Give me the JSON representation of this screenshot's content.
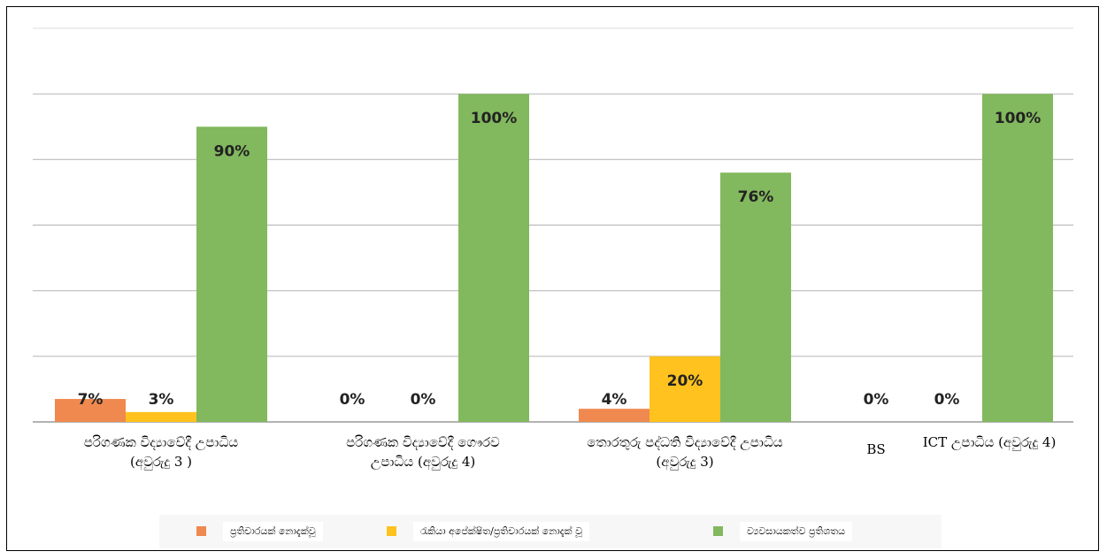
{
  "chart_data": {
    "type": "bar",
    "categories": [
      "පරිගණක විද්‍යාවේදී උපාධිය\n(අවුරුදු 3 )",
      "පරිගණක විද්‍යාවේදී ගෞරව\nඋපාධිය  (අවුරුදු 4)",
      "තොරතුරු පද්ධති විද්‍යාවේදී උපාධිය\n(අවුරුදු 3)",
      "BS"
    ],
    "overlay_label": "ICT උපාධිය (අවුරුදු 4)",
    "series": [
      {
        "name": "ප්‍රතිචාරයක් නොදැක්වූ",
        "color": "#f0894f",
        "values": [
          7,
          0,
          4,
          0
        ],
        "value_labels": [
          "7%",
          "0%",
          "4%",
          "0%"
        ]
      },
      {
        "name": "රැකියා අපේක්ෂිත/ප්‍රතිචාරයක් නොදැක් වූ",
        "color": "#ffc21e",
        "values": [
          3,
          0,
          20,
          0
        ],
        "value_labels": [
          "3%",
          "0%",
          "20%",
          "0%"
        ]
      },
      {
        "name": "ව්‍යවසායකත්ව ප්‍රතිශතය",
        "color": "#82b85e",
        "values": [
          90,
          100,
          76,
          100
        ],
        "value_labels": [
          "90%",
          "100%",
          "76%",
          "100%"
        ]
      }
    ],
    "ylim": [
      0,
      120
    ],
    "yticks": [
      0,
      20,
      40,
      60,
      80,
      100,
      120
    ],
    "grid": true
  }
}
